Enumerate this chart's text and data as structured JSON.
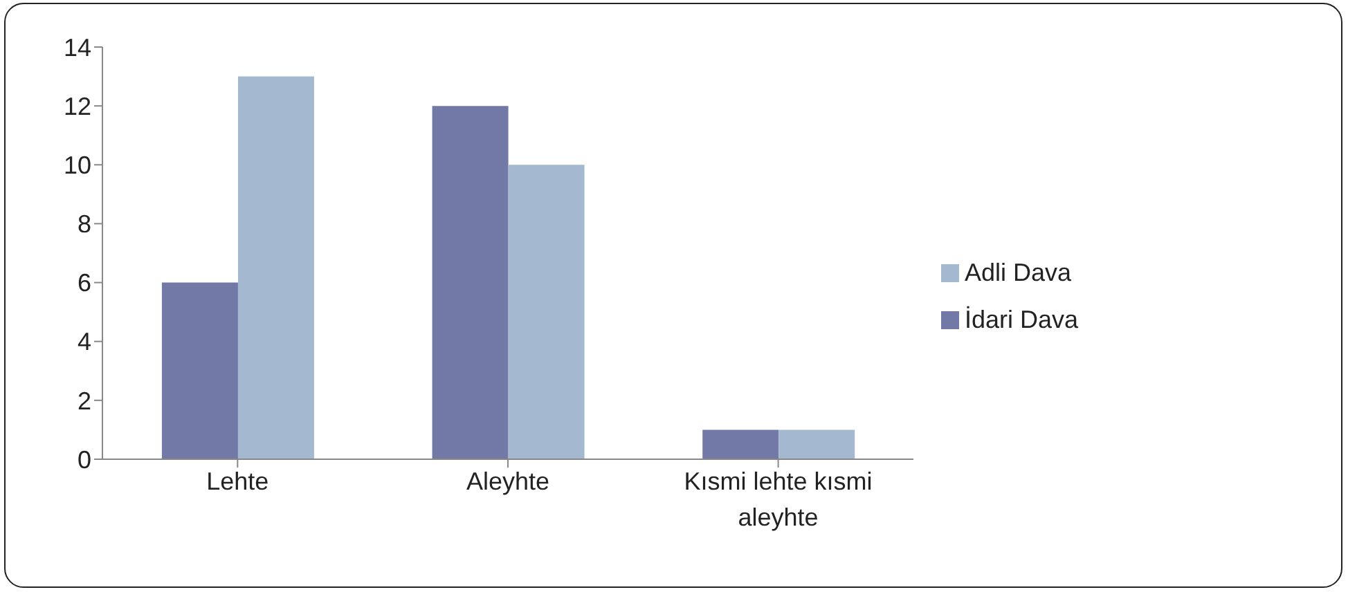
{
  "chart_data": {
    "type": "bar",
    "categories": [
      "Lehte",
      "Aleyhte",
      "Kısmi lehte kısmi aleyhte"
    ],
    "series": [
      {
        "name": "İdari Dava",
        "color": "#7379a6",
        "values": [
          6,
          12,
          1
        ]
      },
      {
        "name": "Adli Dava",
        "color": "#a4b9d0",
        "values": [
          13,
          10,
          1
        ]
      }
    ],
    "ylim": [
      0,
      14
    ],
    "yticks": [
      0,
      2,
      4,
      6,
      8,
      10,
      12,
      14
    ],
    "legend": "right"
  }
}
